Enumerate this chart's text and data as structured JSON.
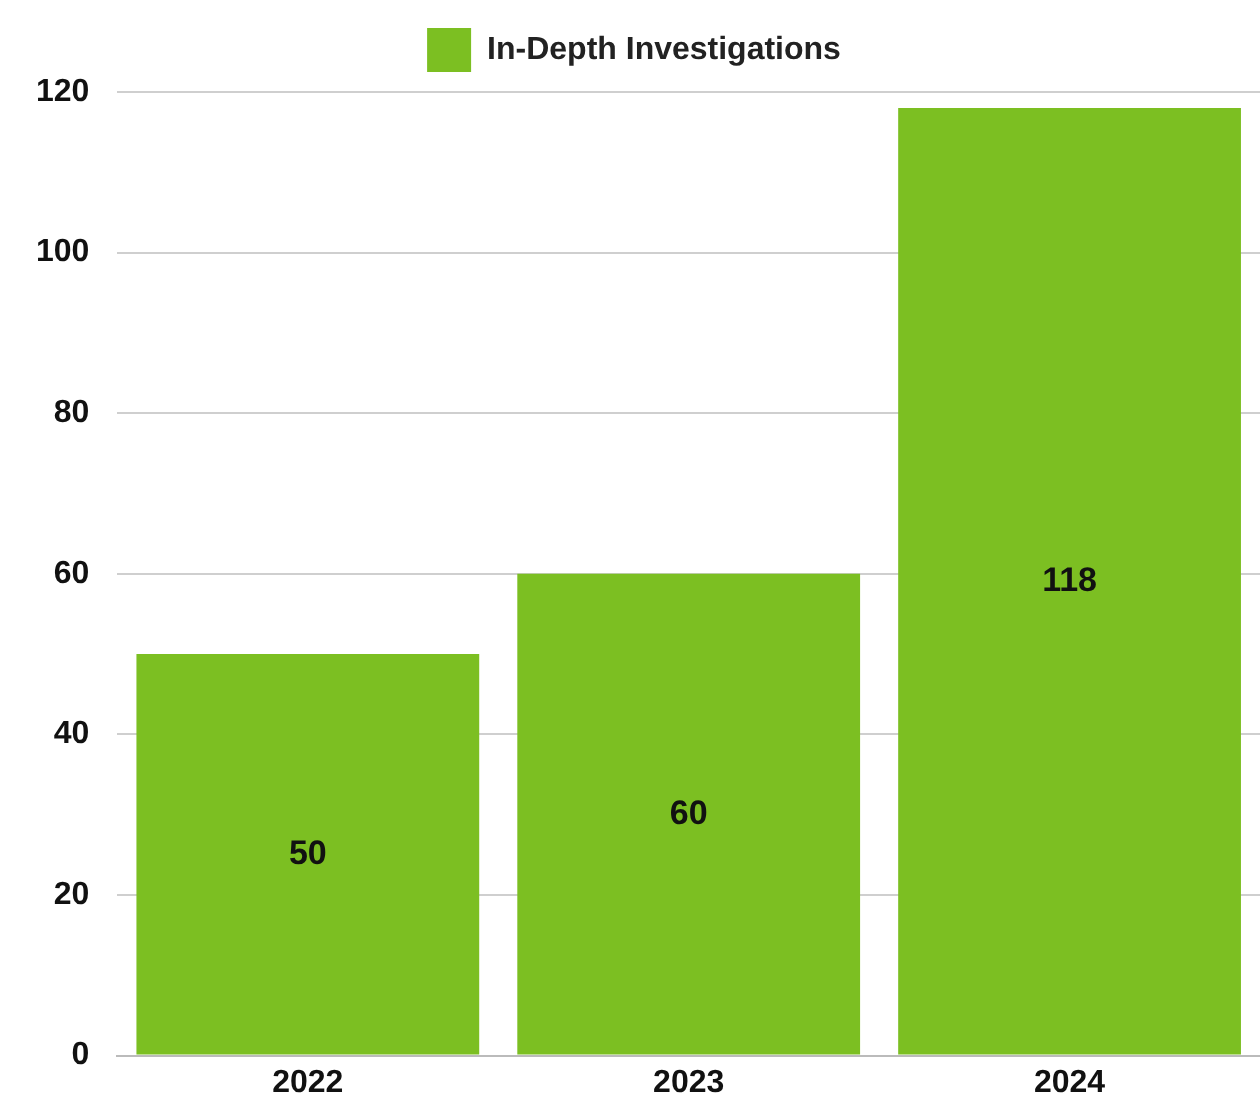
{
  "chart_data": {
    "type": "bar",
    "categories": [
      "2022",
      "2023",
      "2024"
    ],
    "series": [
      {
        "name": "In-Depth Investigations",
        "color": "#7cbf22",
        "values": [
          50,
          60,
          118
        ]
      }
    ],
    "ylim": [
      0,
      120
    ],
    "yticks": [
      0,
      20,
      40,
      60,
      80,
      100,
      120
    ],
    "grid": "y",
    "legend": "top",
    "data_labels": true
  }
}
